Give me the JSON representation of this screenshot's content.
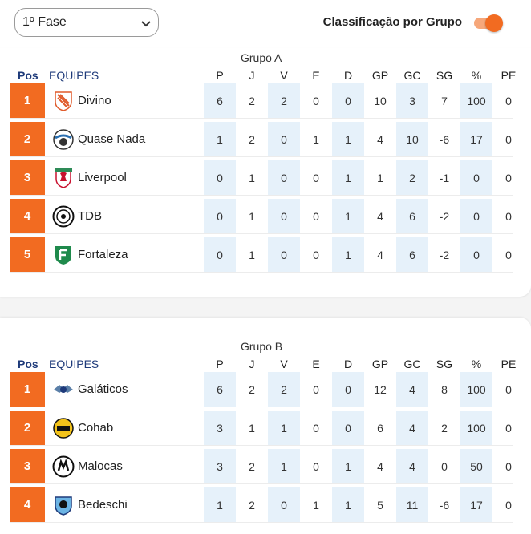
{
  "phase_select": {
    "value": "1º Fase"
  },
  "toggle": {
    "label": "Classificação por Grupo",
    "on": true,
    "accent": "#f26b21"
  },
  "columns": {
    "pos": "Pos",
    "team": "EQUIPES",
    "stats": [
      "P",
      "J",
      "V",
      "E",
      "D",
      "GP",
      "GC",
      "SG",
      "%",
      "PE"
    ]
  },
  "groups": [
    {
      "title": "Grupo A",
      "rows": [
        {
          "rank": "1",
          "team": "Divino",
          "logo": "divino-logo",
          "stats": [
            "6",
            "2",
            "2",
            "0",
            "0",
            "10",
            "3",
            "7",
            "100",
            "0"
          ]
        },
        {
          "rank": "2",
          "team": "Quase Nada",
          "logo": "quase-nada-logo",
          "stats": [
            "1",
            "2",
            "0",
            "1",
            "1",
            "4",
            "10",
            "-6",
            "17",
            "0"
          ]
        },
        {
          "rank": "3",
          "team": "Liverpool",
          "logo": "liverpool-logo",
          "stats": [
            "0",
            "1",
            "0",
            "0",
            "1",
            "1",
            "2",
            "-1",
            "0",
            "0"
          ]
        },
        {
          "rank": "4",
          "team": "TDB",
          "logo": "tdb-logo",
          "stats": [
            "0",
            "1",
            "0",
            "0",
            "1",
            "4",
            "6",
            "-2",
            "0",
            "0"
          ]
        },
        {
          "rank": "5",
          "team": "Fortaleza",
          "logo": "fortaleza-logo",
          "stats": [
            "0",
            "1",
            "0",
            "0",
            "1",
            "4",
            "6",
            "-2",
            "0",
            "0"
          ]
        }
      ]
    },
    {
      "title": "Grupo B",
      "rows": [
        {
          "rank": "1",
          "team": "Galáticos",
          "logo": "galaticos-logo",
          "stats": [
            "6",
            "2",
            "2",
            "0",
            "0",
            "12",
            "4",
            "8",
            "100",
            "0"
          ]
        },
        {
          "rank": "2",
          "team": "Cohab",
          "logo": "cohab-logo",
          "stats": [
            "3",
            "1",
            "1",
            "0",
            "0",
            "6",
            "4",
            "2",
            "100",
            "0"
          ]
        },
        {
          "rank": "3",
          "team": "Malocas",
          "logo": "malocas-logo",
          "stats": [
            "3",
            "2",
            "1",
            "0",
            "1",
            "4",
            "4",
            "0",
            "50",
            "0"
          ]
        },
        {
          "rank": "4",
          "team": "Bedeschi",
          "logo": "bedeschi-logo",
          "stats": [
            "1",
            "2",
            "0",
            "1",
            "1",
            "5",
            "11",
            "-6",
            "17",
            "0"
          ]
        }
      ]
    }
  ]
}
